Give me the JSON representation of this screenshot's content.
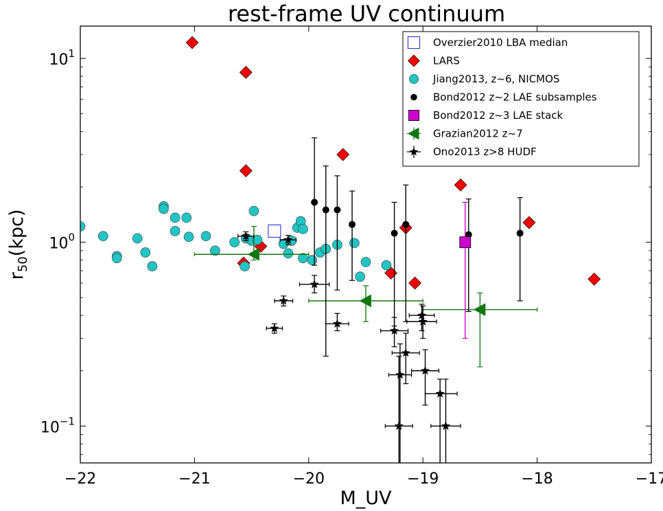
{
  "chart_data": {
    "type": "scatter",
    "title": "rest-frame UV continuum",
    "xlabel": "M_UV",
    "ylabel_main": "r",
    "ylabel_sub": "50",
    "ylabel_unit": "(kpc)",
    "xlim": [
      -22,
      -17
    ],
    "ylim": [
      0.063,
      15
    ],
    "yscale": "log",
    "grid": false,
    "legend_position": "top-right",
    "x_ticks": [
      {
        "value": -22,
        "label": "−22"
      },
      {
        "value": -21,
        "label": "−21"
      },
      {
        "value": -20,
        "label": "−20"
      },
      {
        "value": -19,
        "label": "−19"
      },
      {
        "value": -18,
        "label": "−18"
      },
      {
        "value": -17,
        "label": "−17"
      }
    ],
    "y_ticks": [
      {
        "value": 0.1,
        "base": "10",
        "exp": "−1"
      },
      {
        "value": 1,
        "base": "10",
        "exp": "0"
      },
      {
        "value": 10,
        "base": "10",
        "exp": "1"
      }
    ],
    "series": [
      {
        "name": "Overzier2010 LBA median",
        "marker": "open-square",
        "color": "#3333cc",
        "points": [
          {
            "x": -20.3,
            "y": 1.15
          }
        ]
      },
      {
        "name": "LARS",
        "marker": "diamond",
        "color": "#ee0000",
        "points": [
          {
            "x": -21.02,
            "y": 12.2
          },
          {
            "x": -20.55,
            "y": 8.4
          },
          {
            "x": -20.55,
            "y": 2.45
          },
          {
            "x": -19.7,
            "y": 3.0
          },
          {
            "x": -18.67,
            "y": 2.05
          },
          {
            "x": -18.07,
            "y": 1.28
          },
          {
            "x": -19.15,
            "y": 1.2
          },
          {
            "x": -20.42,
            "y": 0.95
          },
          {
            "x": -20.57,
            "y": 0.77
          },
          {
            "x": -19.28,
            "y": 0.68
          },
          {
            "x": -19.07,
            "y": 0.6
          },
          {
            "x": -17.5,
            "y": 0.63
          }
        ]
      },
      {
        "name": "Jiang2013, z~6, NICMOS",
        "marker": "circle",
        "color": "#22c4c4",
        "points": [
          {
            "x": -22.0,
            "y": 1.22
          },
          {
            "x": -21.8,
            "y": 1.08
          },
          {
            "x": -21.68,
            "y": 0.84
          },
          {
            "x": -21.68,
            "y": 0.82
          },
          {
            "x": -21.5,
            "y": 1.05
          },
          {
            "x": -21.43,
            "y": 0.88
          },
          {
            "x": -21.37,
            "y": 0.74
          },
          {
            "x": -21.27,
            "y": 1.57
          },
          {
            "x": -21.27,
            "y": 1.52
          },
          {
            "x": -21.17,
            "y": 1.36
          },
          {
            "x": -21.17,
            "y": 1.15
          },
          {
            "x": -21.07,
            "y": 1.36
          },
          {
            "x": -21.05,
            "y": 1.07
          },
          {
            "x": -20.9,
            "y": 1.08
          },
          {
            "x": -20.82,
            "y": 0.9
          },
          {
            "x": -20.65,
            "y": 1.0
          },
          {
            "x": -20.56,
            "y": 0.74
          },
          {
            "x": -20.55,
            "y": 1.05
          },
          {
            "x": -20.5,
            "y": 1.02
          },
          {
            "x": -20.48,
            "y": 1.48
          },
          {
            "x": -20.45,
            "y": 1.03
          },
          {
            "x": -20.22,
            "y": 0.98
          },
          {
            "x": -20.18,
            "y": 0.87
          },
          {
            "x": -20.15,
            "y": 1.02
          },
          {
            "x": -20.1,
            "y": 1.2
          },
          {
            "x": -20.07,
            "y": 1.3
          },
          {
            "x": -20.05,
            "y": 1.18
          },
          {
            "x": -20.05,
            "y": 0.82
          },
          {
            "x": -19.97,
            "y": 0.8
          },
          {
            "x": -19.9,
            "y": 0.88
          },
          {
            "x": -19.85,
            "y": 0.92
          },
          {
            "x": -19.75,
            "y": 0.97
          },
          {
            "x": -19.6,
            "y": 0.99
          },
          {
            "x": -19.55,
            "y": 0.65
          },
          {
            "x": -19.5,
            "y": 0.78
          },
          {
            "x": -19.32,
            "y": 0.75
          }
        ]
      },
      {
        "name": "Bond2012 z~2 LAE subsamples",
        "marker": "dot",
        "color": "#000000",
        "points": [
          {
            "x": -19.95,
            "y": 1.65,
            "ylo": 0.75,
            "yhi": 3.7
          },
          {
            "x": -19.85,
            "y": 1.5,
            "ylo": 0.24,
            "yhi": 2.6
          },
          {
            "x": -19.75,
            "y": 1.5,
            "ylo": 0.55,
            "yhi": 2.3
          },
          {
            "x": -19.62,
            "y": 1.25,
            "ylo": 0.62,
            "yhi": 1.9
          },
          {
            "x": -19.25,
            "y": 1.12,
            "ylo": 0.35,
            "yhi": 1.65
          },
          {
            "x": -19.15,
            "y": 1.25,
            "ylo": 0.37,
            "yhi": 2.05
          },
          {
            "x": -18.6,
            "y": 1.1,
            "ylo": 0.42,
            "yhi": 1.72
          },
          {
            "x": -18.15,
            "y": 1.12,
            "ylo": 0.48,
            "yhi": 1.75
          }
        ]
      },
      {
        "name": "Bond2012 z~3 LAE stack",
        "marker": "filled-square",
        "color": "#cc00cc",
        "points": [
          {
            "x": -18.63,
            "y": 1.0,
            "ylo": 0.3,
            "yhi": 1.65
          }
        ]
      },
      {
        "name": "Grazian2012 z~7",
        "marker": "triangle-left",
        "color": "#117711",
        "points": [
          {
            "x": -20.48,
            "y": 0.86,
            "xlo": -21.0,
            "xhi": -20.0,
            "ylo": 0.8,
            "yhi": 1.22
          },
          {
            "x": -19.5,
            "y": 0.48,
            "xlo": -20.0,
            "xhi": -19.0,
            "ylo": 0.37,
            "yhi": 0.58
          },
          {
            "x": -18.5,
            "y": 0.43,
            "xlo": -19.0,
            "xhi": -18.0,
            "ylo": 0.21,
            "yhi": 0.53
          }
        ]
      },
      {
        "name": "Ono2013 z>8 HUDF",
        "marker": "star",
        "color": "#000000",
        "points": [
          {
            "x": -20.55,
            "y": 1.08,
            "xlo": -20.62,
            "xhi": -20.48,
            "ylo": 1.02,
            "yhi": 1.14
          },
          {
            "x": -20.18,
            "y": 1.03,
            "xlo": -20.25,
            "xhi": -20.11,
            "ylo": 0.97,
            "yhi": 1.09
          },
          {
            "x": -20.3,
            "y": 0.34,
            "xlo": -20.37,
            "xhi": -20.23,
            "ylo": 0.32,
            "yhi": 0.36
          },
          {
            "x": -20.22,
            "y": 0.48,
            "xlo": -20.3,
            "xhi": -20.14,
            "ylo": 0.45,
            "yhi": 0.51
          },
          {
            "x": -19.95,
            "y": 0.59,
            "xlo": -20.08,
            "xhi": -19.82,
            "ylo": 0.53,
            "yhi": 0.66
          },
          {
            "x": -19.75,
            "y": 0.36,
            "xlo": -19.85,
            "xhi": -19.65,
            "ylo": 0.33,
            "yhi": 0.41
          },
          {
            "x": -19.25,
            "y": 0.33,
            "xlo": -19.37,
            "xhi": -19.13,
            "ylo": 0.27,
            "yhi": 0.39
          },
          {
            "x": -19.2,
            "y": 0.19,
            "xlo": -19.3,
            "xhi": -19.1,
            "ylo": 0.06,
            "yhi": 0.28
          },
          {
            "x": -19.15,
            "y": 0.25,
            "xlo": -19.27,
            "xhi": -19.03,
            "ylo": 0.17,
            "yhi": 0.32
          },
          {
            "x": -19.21,
            "y": 0.1,
            "xlo": -19.33,
            "xhi": -19.09,
            "ylo": 0.06,
            "yhi": 0.24
          },
          {
            "x": -19.01,
            "y": 0.4,
            "xlo": -19.12,
            "xhi": -18.9,
            "ylo": 0.33,
            "yhi": 0.46
          },
          {
            "x": -19.0,
            "y": 0.37,
            "xlo": -19.14,
            "xhi": -18.88,
            "ylo": 0.3,
            "yhi": 0.45
          },
          {
            "x": -18.98,
            "y": 0.2,
            "xlo": -19.1,
            "xhi": -18.86,
            "ylo": 0.13,
            "yhi": 0.26
          },
          {
            "x": -18.85,
            "y": 0.15,
            "xlo": -18.98,
            "xhi": -18.7,
            "ylo": 0.06,
            "yhi": 0.18
          },
          {
            "x": -18.8,
            "y": 0.1,
            "xlo": -18.93,
            "xhi": -18.67,
            "ylo": 0.06,
            "yhi": 0.18
          }
        ]
      }
    ]
  }
}
